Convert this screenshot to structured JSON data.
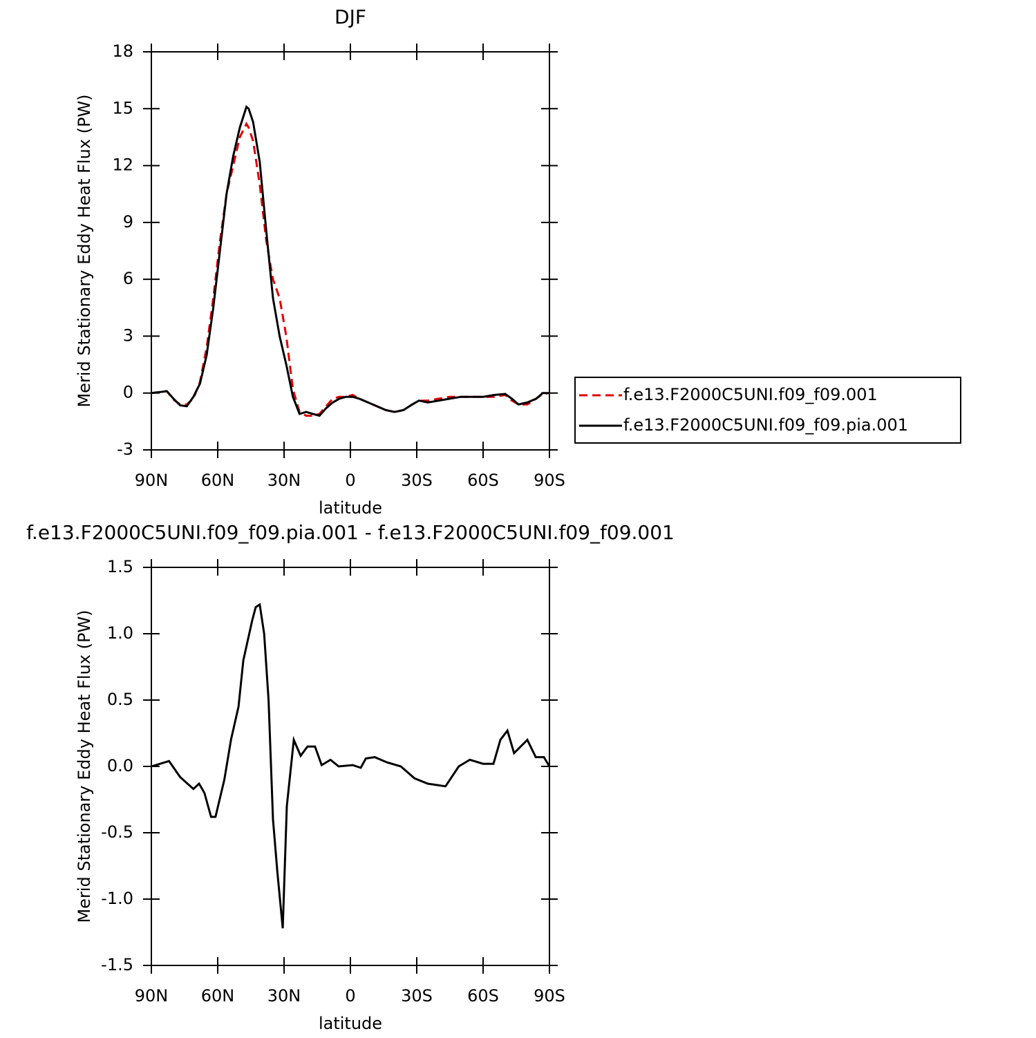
{
  "chart_data": [
    {
      "type": "line",
      "title": "DJF",
      "x_label": "latitude",
      "y_label": "Merid Stationary Eddy Heat Flux (PW)",
      "xlim": [
        90,
        -90
      ],
      "xticks": [
        {
          "value": 90,
          "label": "90N"
        },
        {
          "value": 60,
          "label": "60N"
        },
        {
          "value": 30,
          "label": "30N"
        },
        0,
        {
          "value": -30,
          "label": "30S"
        },
        {
          "value": -60,
          "label": "60S"
        },
        {
          "value": -90,
          "label": "90S"
        }
      ],
      "ylim": [
        -3,
        18
      ],
      "yticks": [
        -3,
        0,
        3,
        6,
        9,
        12,
        15,
        18
      ],
      "legend": "right",
      "x": [
        90,
        86,
        83,
        80,
        77,
        74,
        71,
        68,
        65,
        62,
        59,
        56,
        53,
        50,
        47,
        46,
        44,
        41,
        38,
        35,
        32,
        29,
        26,
        23,
        20,
        17,
        14,
        11,
        8,
        5,
        2,
        -1,
        -4,
        -8,
        -12,
        -16,
        -20,
        -24,
        -28,
        -31,
        -35,
        -40,
        -45,
        -50,
        -55,
        -60,
        -65,
        -70,
        -73,
        -76,
        -80,
        -84,
        -87,
        -90
      ],
      "series": [
        {
          "name": "f.e13.F2000C5UNI.f09_f09.001",
          "color": "#e00000",
          "line_style": "dashed",
          "values": [
            0,
            0.05,
            0.1,
            -0.35,
            -0.6,
            -0.6,
            -0.3,
            0.6,
            2.4,
            5.0,
            8.0,
            10.5,
            12.0,
            13.5,
            14.2,
            14.0,
            13.3,
            11.0,
            8.0,
            6.0,
            5.0,
            3.0,
            0.2,
            -1.0,
            -1.2,
            -1.2,
            -1.1,
            -0.7,
            -0.3,
            -0.2,
            -0.2,
            -0.1,
            -0.3,
            -0.5,
            -0.7,
            -0.9,
            -1.0,
            -0.9,
            -0.6,
            -0.4,
            -0.4,
            -0.3,
            -0.2,
            -0.2,
            -0.2,
            -0.2,
            -0.2,
            -0.1,
            -0.4,
            -0.6,
            -0.6,
            -0.3,
            -0.05,
            0
          ]
        },
        {
          "name": "f.e13.F2000C5UNI.f09_f09.pia.001",
          "color": "#000000",
          "line_style": "solid",
          "values": [
            0,
            0.05,
            0.1,
            -0.3,
            -0.65,
            -0.7,
            -0.2,
            0.5,
            2.0,
            4.5,
            7.5,
            10.5,
            12.5,
            14.0,
            15.1,
            15.0,
            14.3,
            12.2,
            8.5,
            5.0,
            3.0,
            1.5,
            -0.2,
            -1.1,
            -1.0,
            -1.1,
            -1.2,
            -0.8,
            -0.5,
            -0.3,
            -0.2,
            -0.2,
            -0.3,
            -0.5,
            -0.7,
            -0.9,
            -1.0,
            -0.9,
            -0.6,
            -0.4,
            -0.5,
            -0.4,
            -0.3,
            -0.2,
            -0.2,
            -0.2,
            -0.1,
            -0.05,
            -0.3,
            -0.6,
            -0.5,
            -0.3,
            0,
            0
          ]
        }
      ]
    },
    {
      "type": "line",
      "title": "f.e13.F2000C5UNI.f09_f09.pia.001 - f.e13.F2000C5UNI.f09_f09.001",
      "x_label": "latitude",
      "y_label": "Merid Stationary Eddy Heat Flux (PW)",
      "xlim": [
        90,
        -90
      ],
      "xticks": [
        {
          "value": 90,
          "label": "90N"
        },
        {
          "value": 60,
          "label": "60N"
        },
        {
          "value": 30,
          "label": "30N"
        },
        0,
        {
          "value": -30,
          "label": "30S"
        },
        {
          "value": -60,
          "label": "60S"
        },
        {
          "value": -90,
          "label": "90S"
        }
      ],
      "ylim": [
        -1.5,
        1.5
      ],
      "yticks": [
        -1.5,
        {
          "value": -1,
          "label": "-1.0"
        },
        -0.5,
        {
          "value": 0,
          "label": "0.0"
        },
        0.5,
        {
          "value": 1,
          "label": "1.0"
        },
        1.5
      ],
      "x": [
        90,
        82,
        77,
        71,
        68.4,
        66,
        63,
        61,
        57,
        54,
        50.6,
        48.4,
        44.4,
        42.8,
        41,
        39,
        37,
        35,
        33,
        30.6,
        28.75,
        25.6,
        22.5,
        19.4,
        16,
        13,
        9,
        5.3,
        -1,
        -4.7,
        -7,
        -11,
        -16.6,
        -22.8,
        -29,
        -35,
        -43,
        -49,
        -54,
        -60,
        -64.7,
        -67.8,
        -71,
        -74,
        -80,
        -83.8,
        -87.5,
        -90
      ],
      "series": [
        {
          "name": null,
          "color": "#000000",
          "line_style": "solid",
          "values": [
            0,
            0.04,
            -0.08,
            -0.17,
            -0.13,
            -0.2,
            -0.38,
            -0.38,
            -0.1,
            0.2,
            0.45,
            0.8,
            1.1,
            1.2,
            1.22,
            1.0,
            0.5,
            -0.4,
            -0.8,
            -1.22,
            -0.3,
            0.2,
            0.08,
            0.15,
            0.15,
            0.01,
            0.05,
            0.0,
            0.01,
            -0.01,
            0.06,
            0.07,
            0.03,
            0.0,
            -0.09,
            -0.13,
            -0.15,
            0.0,
            0.05,
            0.02,
            0.02,
            0.2,
            0.27,
            0.1,
            0.2,
            0.07,
            0.07,
            0
          ]
        }
      ]
    }
  ]
}
